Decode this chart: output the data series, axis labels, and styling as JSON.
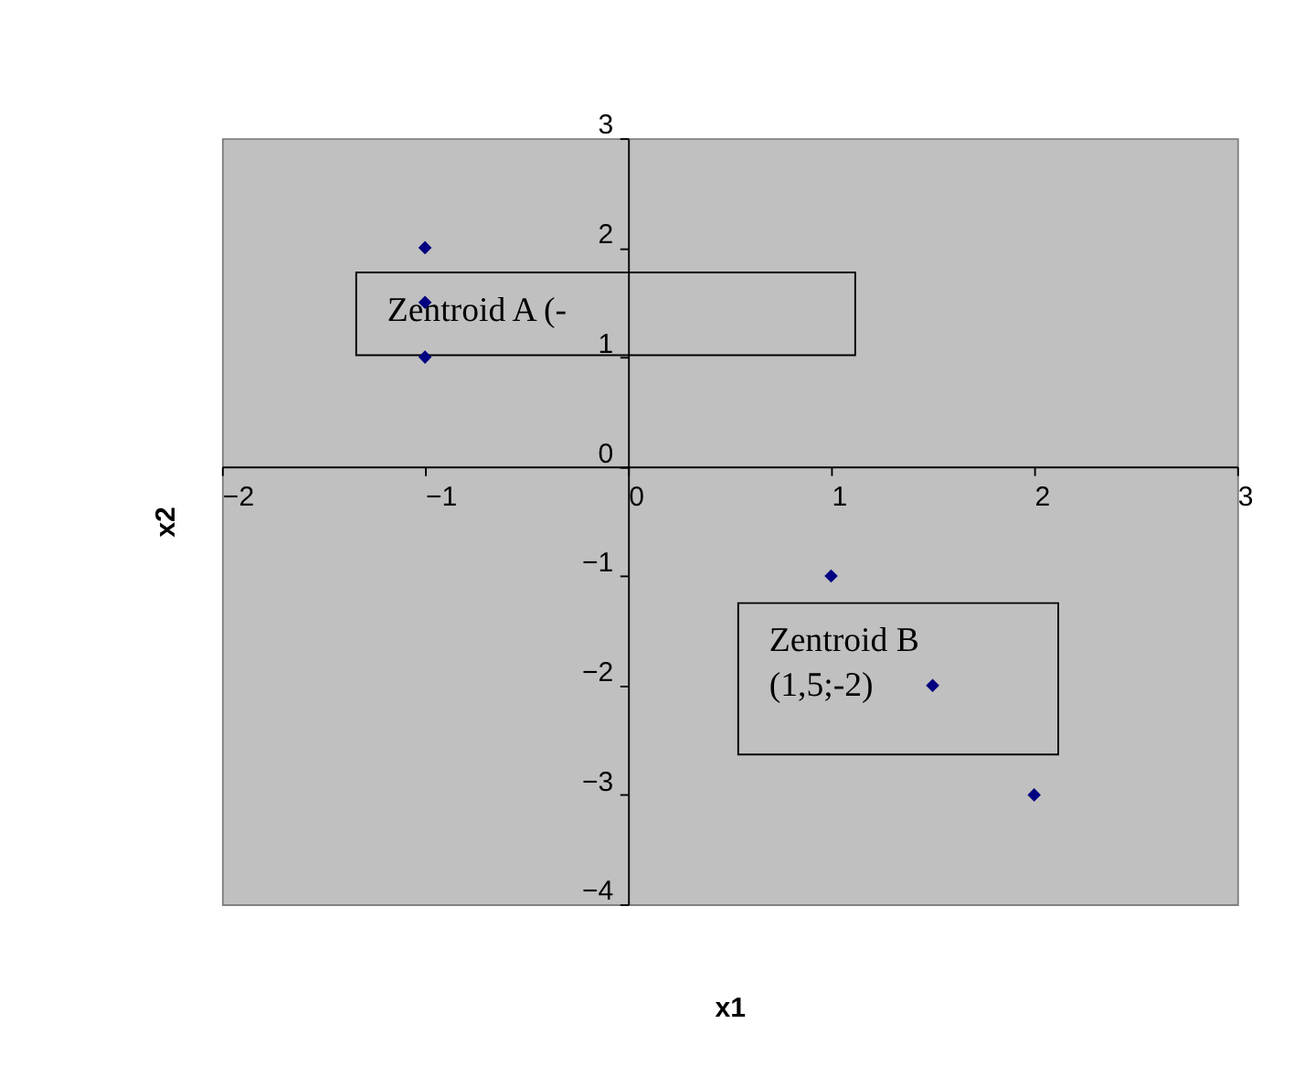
{
  "chart_data": {
    "type": "scatter",
    "xlabel": "x1",
    "ylabel": "x2",
    "x": [
      -1,
      -1,
      -1,
      1,
      1.5,
      2
    ],
    "series": [
      {
        "color": "#000080",
        "values": [
          2,
          1.5,
          1,
          -1,
          -2,
          -3
        ]
      }
    ],
    "marker": "diamond",
    "xlim": [
      -2,
      3
    ],
    "xticks": [
      -2,
      -1,
      0,
      1,
      2,
      3
    ],
    "ylim": [
      -4,
      3
    ],
    "yticks": [
      -4,
      -3,
      -2,
      -1,
      0,
      1,
      2,
      3
    ],
    "grid": false,
    "annotations": [
      "Zentroid A (-",
      "Zentroid B (1,5;-2)"
    ]
  }
}
